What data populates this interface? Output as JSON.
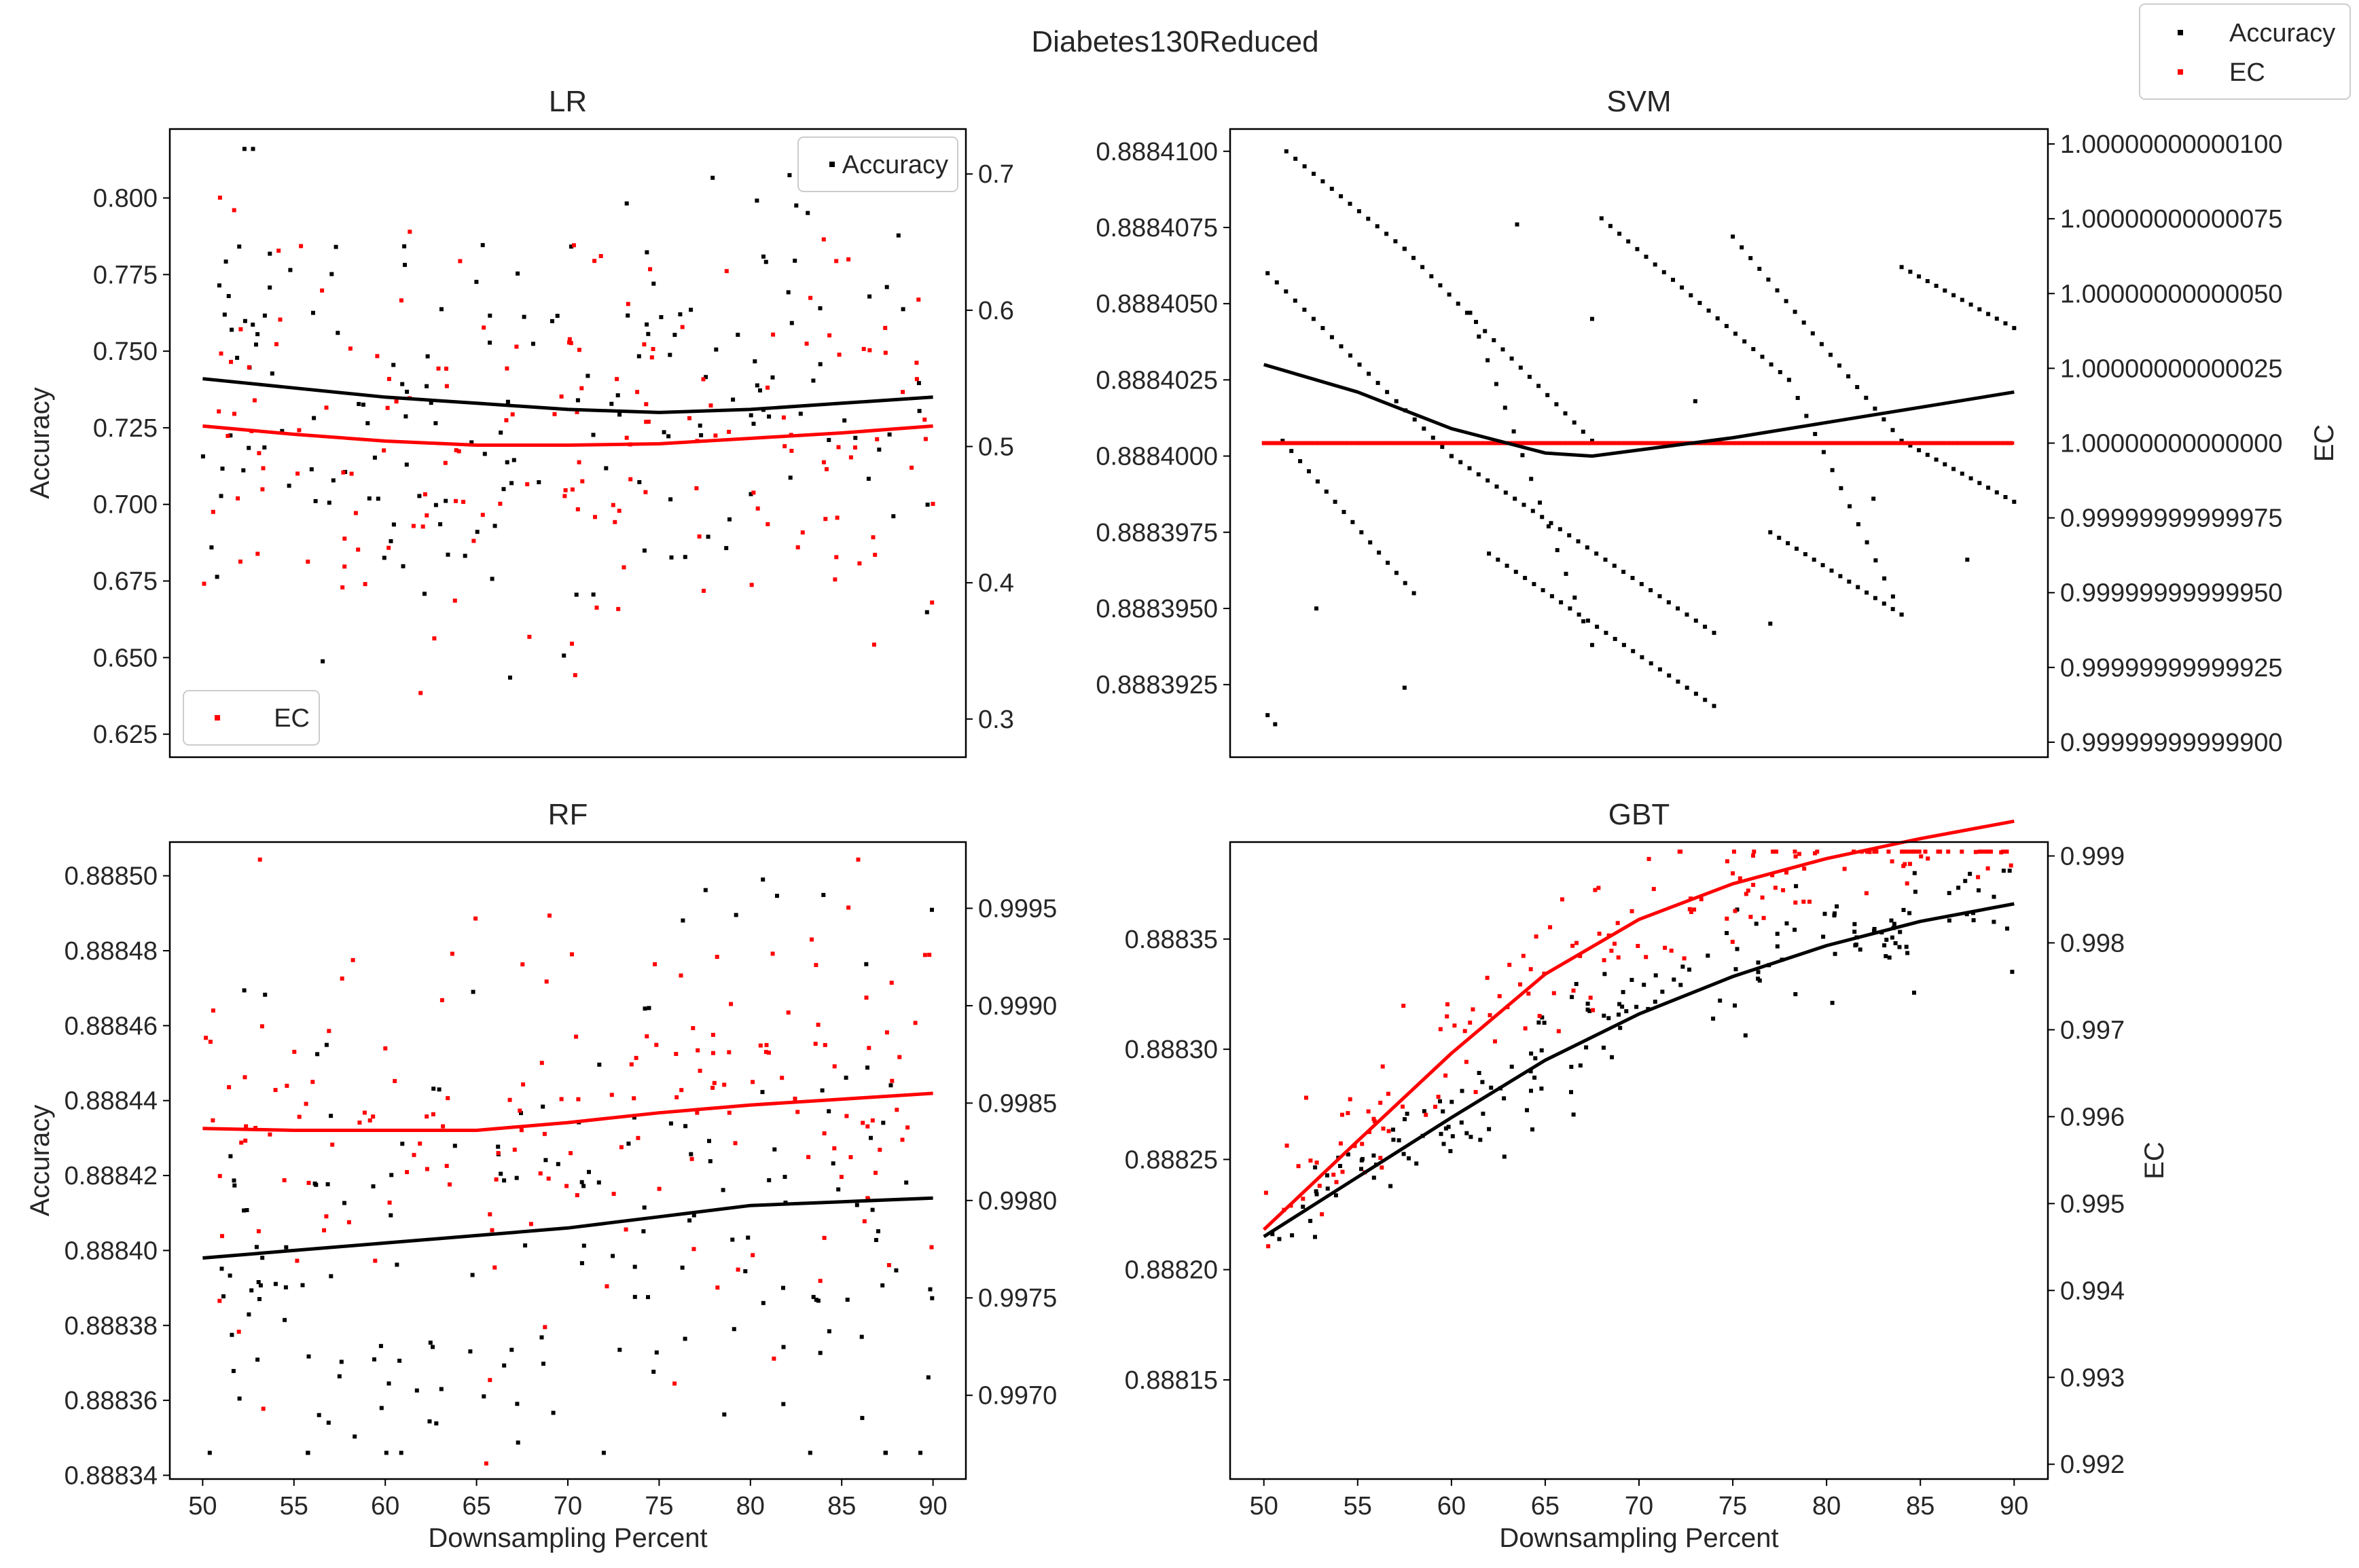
{
  "figure_title": "Diabetes130Reduced",
  "figure_legend": [
    "Accuracy",
    "EC"
  ],
  "colors": {
    "accuracy": "#000000",
    "ec": "#ff0000",
    "frame": "#000000",
    "text": "#262626"
  },
  "chart_data": [
    {
      "type": "scatter",
      "title": "LR",
      "xlabel": "",
      "ylabel": "Accuracy",
      "y2label": "",
      "xlim": [
        48.2,
        91.8
      ],
      "ylim": [
        0.6175,
        0.8225
      ],
      "y2lim": [
        0.272,
        0.733
      ],
      "xticks": [],
      "yticks": [
        0.625,
        0.65,
        0.675,
        0.7,
        0.725,
        0.75,
        0.775,
        0.8
      ],
      "ytick_labels": [
        "0.625",
        "0.650",
        "0.675",
        "0.700",
        "0.725",
        "0.750",
        "0.775",
        "0.800"
      ],
      "y2ticks": [
        0.3,
        0.4,
        0.5,
        0.6,
        0.7
      ],
      "y2tick_labels": [
        "0.3",
        "0.4",
        "0.5",
        "0.6",
        "0.7"
      ],
      "legends": [
        {
          "label": "Accuracy",
          "position": "upper right",
          "series": "accuracy"
        },
        {
          "label": "EC",
          "position": "lower left",
          "series": "ec"
        }
      ],
      "trend": {
        "x": [
          50,
          55,
          60,
          65,
          70,
          75,
          80,
          85,
          90
        ],
        "accuracy": [
          0.741,
          0.738,
          0.735,
          0.733,
          0.731,
          0.73,
          0.731,
          0.733,
          0.735
        ],
        "ec": [
          0.515,
          0.509,
          0.504,
          0.501,
          0.501,
          0.502,
          0.506,
          0.51,
          0.515
        ]
      },
      "scatter": {
        "n": 170,
        "seed": 11,
        "acc_sd": 0.035,
        "acc_min": 0.622,
        "acc_max": 0.816,
        "ec_sd": 0.085,
        "ec_min": 0.31,
        "ec_max": 0.72
      }
    },
    {
      "type": "scatter",
      "title": "SVM",
      "xlabel": "",
      "ylabel": "",
      "y2label": "EC",
      "xlim": [
        48.2,
        91.8
      ],
      "ylim": [
        0.88839012,
        0.88841073
      ],
      "y2lim": [
        0.99999999999895,
        1.00000000000105
      ],
      "xticks": [],
      "yticks": [
        0.8883925,
        0.888395,
        0.8883975,
        0.8884,
        0.8884025,
        0.888405,
        0.8884075,
        0.88841
      ],
      "ytick_labels": [
        "0.8883925",
        "0.8883950",
        "0.8883975",
        "0.8884000",
        "0.8884025",
        "0.8884050",
        "0.8884075",
        "0.8884100"
      ],
      "y2ticks": [
        0.999999999999,
        0.99999999999925,
        0.9999999999995,
        0.99999999999975,
        1.0,
        1.00000000000025,
        1.0000000000005,
        1.00000000000075,
        1.000000000001
      ],
      "y2tick_labels": [
        "0.99999999999900",
        "0.99999999999925",
        "0.99999999999950",
        "0.99999999999975",
        "1.00000000000000",
        "1.00000000000025",
        "1.00000000000050",
        "1.00000000000075",
        "1.00000000000100"
      ],
      "legends": [],
      "trend": {
        "x": [
          50,
          55,
          60,
          65,
          67.5,
          70,
          75,
          80,
          85,
          90
        ],
        "accuracy": [
          0.888403,
          0.8884021,
          0.8884009,
          0.8884001,
          0.8884,
          0.8884002,
          0.8884006,
          0.8884011,
          0.8884016,
          0.8884021
        ],
        "ec": [
          1.0,
          1.0,
          1.0,
          1.0,
          1.0,
          1.0,
          1.0,
          1.0,
          1.0,
          1.0
        ]
      },
      "svm_bands": [
        {
          "x0": 51.2,
          "y0": 0.88841,
          "x1": 57.5,
          "y1": 0.8884068
        },
        {
          "x0": 57.5,
          "y0": 0.8884068,
          "x1": 67.5,
          "y1": 0.8884005
        },
        {
          "x0": 50.2,
          "y0": 0.888406,
          "x1": 60.0,
          "y1": 0.8884
        },
        {
          "x0": 60.0,
          "y0": 0.8884,
          "x1": 74.0,
          "y1": 0.8883942
        },
        {
          "x0": 51.0,
          "y0": 0.8884005,
          "x1": 58.0,
          "y1": 0.8883955
        },
        {
          "x0": 61.0,
          "y0": 0.8884047,
          "x1": 67.5,
          "y1": 0.8883938
        },
        {
          "x0": 68.0,
          "y0": 0.8884078,
          "x1": 78.0,
          "y1": 0.8884025
        },
        {
          "x0": 78.0,
          "y0": 0.8884025,
          "x1": 84.0,
          "y1": 0.8883948
        },
        {
          "x0": 75.0,
          "y0": 0.8884072,
          "x1": 84.0,
          "y1": 0.8884005
        },
        {
          "x0": 84.0,
          "y0": 0.8884005,
          "x1": 90.0,
          "y1": 0.8883985
        },
        {
          "x0": 84.0,
          "y0": 0.8884062,
          "x1": 90.0,
          "y1": 0.8884042
        },
        {
          "x0": 62.0,
          "y0": 0.8883968,
          "x1": 74.0,
          "y1": 0.8883918
        },
        {
          "x0": 77.0,
          "y0": 0.8883975,
          "x1": 84.0,
          "y1": 0.8883948
        }
      ],
      "svm_outliers": [
        {
          "x": 50.2,
          "y": 0.8883915
        },
        {
          "x": 50.6,
          "y": 0.8883912
        },
        {
          "x": 52.8,
          "y": 0.888395
        },
        {
          "x": 57.5,
          "y": 0.8883924
        },
        {
          "x": 63.5,
          "y": 0.8884076
        },
        {
          "x": 67.5,
          "y": 0.8884045
        },
        {
          "x": 73.0,
          "y": 0.8884018
        },
        {
          "x": 77.0,
          "y": 0.8883945
        },
        {
          "x": 82.5,
          "y": 0.8883986
        },
        {
          "x": 87.5,
          "y": 0.8883966
        }
      ]
    },
    {
      "type": "scatter",
      "title": "RF",
      "xlabel": "Downsampling Percent",
      "ylabel": "Accuracy",
      "y2label": "",
      "xlim": [
        48.2,
        91.8
      ],
      "ylim": [
        0.888339,
        0.888509
      ],
      "y2lim": [
        0.99657,
        0.99984
      ],
      "xticks": [
        50,
        55,
        60,
        65,
        70,
        75,
        80,
        85,
        90
      ],
      "xtick_labels": [
        "50",
        "55",
        "60",
        "65",
        "70",
        "75",
        "80",
        "85",
        "90"
      ],
      "yticks": [
        0.88834,
        0.88836,
        0.88838,
        0.8884,
        0.88842,
        0.88844,
        0.88846,
        0.88848,
        0.8885
      ],
      "ytick_labels": [
        "0.88834",
        "0.88836",
        "0.88838",
        "0.88840",
        "0.88842",
        "0.88844",
        "0.88846",
        "0.88848",
        "0.88850"
      ],
      "y2ticks": [
        0.997,
        0.9975,
        0.998,
        0.9985,
        0.999,
        0.9995
      ],
      "y2tick_labels": [
        "0.9970",
        "0.9975",
        "0.9980",
        "0.9985",
        "0.9990",
        "0.9995"
      ],
      "legends": [],
      "trend": {
        "x": [
          50,
          55,
          60,
          65,
          70,
          75,
          80,
          85,
          90
        ],
        "accuracy": [
          0.888398,
          0.8884,
          0.888402,
          0.888404,
          0.888406,
          0.888409,
          0.888412,
          0.888413,
          0.888414
        ],
        "ec": [
          0.99837,
          0.99836,
          0.99836,
          0.99836,
          0.9984,
          0.99845,
          0.99849,
          0.99852,
          0.99855
        ]
      },
      "scatter": {
        "n": 170,
        "seed": 23,
        "acc_sd": 3.4e-05,
        "acc_min": 0.888346,
        "acc_max": 0.888499,
        "ec_sd": 0.00052,
        "ec_min": 0.99665,
        "ec_max": 0.99975
      }
    },
    {
      "type": "scatter",
      "title": "GBT",
      "xlabel": "Downsampling Percent",
      "ylabel": "",
      "y2label": "EC",
      "xlim": [
        48.2,
        91.8
      ],
      "ylim": [
        0.888105,
        0.888394
      ],
      "y2lim": [
        0.99183,
        0.99916
      ],
      "xticks": [
        50,
        55,
        60,
        65,
        70,
        75,
        80,
        85,
        90
      ],
      "xtick_labels": [
        "50",
        "55",
        "60",
        "65",
        "70",
        "75",
        "80",
        "85",
        "90"
      ],
      "yticks": [
        0.88815,
        0.8882,
        0.88825,
        0.8883,
        0.88835
      ],
      "ytick_labels": [
        "0.88815",
        "0.88820",
        "0.88825",
        "0.88830",
        "0.88835"
      ],
      "y2ticks": [
        0.992,
        0.993,
        0.994,
        0.995,
        0.996,
        0.997,
        0.998,
        0.999
      ],
      "y2tick_labels": [
        "0.992",
        "0.993",
        "0.994",
        "0.995",
        "0.996",
        "0.997",
        "0.998",
        "0.999"
      ],
      "legends": [],
      "trend": {
        "x": [
          50,
          55,
          60,
          65,
          70,
          75,
          80,
          85,
          90
        ],
        "accuracy": [
          0.888215,
          0.888242,
          0.888269,
          0.888295,
          0.888316,
          0.888333,
          0.888347,
          0.888358,
          0.888366
        ],
        "ec": [
          0.9947,
          0.99572,
          0.99673,
          0.99764,
          0.99827,
          0.99868,
          0.99897,
          0.9992,
          0.9994
        ]
      },
      "scatter": {
        "n": 170,
        "seed": 37,
        "acc_sd": 1.3e-05,
        "acc_min": 0.888125,
        "acc_max": 0.888381,
        "ec_sd": 0.00035,
        "ec_min": 0.99205,
        "ec_max": 0.99905
      }
    }
  ]
}
